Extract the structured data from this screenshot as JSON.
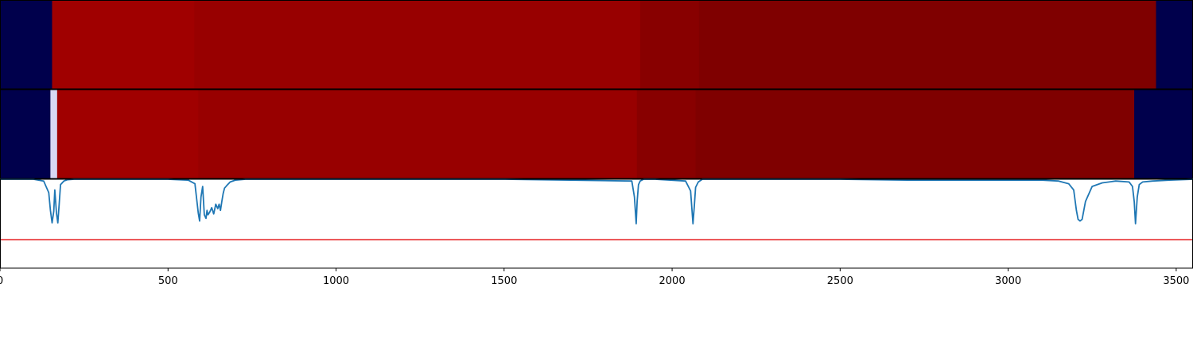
{
  "chart_data": [
    {
      "type": "heatmap",
      "colorscale": "seismic",
      "xlim": [
        0,
        3550
      ],
      "segments": [
        {
          "x0": 0,
          "x1": 155,
          "color": "#00004c"
        },
        {
          "x0": 155,
          "x1": 578,
          "color": "#a00000"
        },
        {
          "x0": 578,
          "x1": 1905,
          "color": "#980000"
        },
        {
          "x0": 1905,
          "x1": 2080,
          "color": "#880000"
        },
        {
          "x0": 2080,
          "x1": 3440,
          "color": "#7f0000"
        },
        {
          "x0": 3440,
          "x1": 3550,
          "color": "#00004c"
        }
      ]
    },
    {
      "type": "heatmap",
      "colorscale": "seismic",
      "xlim": [
        0,
        3550
      ],
      "segments": [
        {
          "x0": 0,
          "x1": 150,
          "color": "#00004c"
        },
        {
          "x0": 150,
          "x1": 170,
          "color": "#d8d8f4"
        },
        {
          "x0": 170,
          "x1": 590,
          "color": "#a00000"
        },
        {
          "x0": 590,
          "x1": 1895,
          "color": "#980000"
        },
        {
          "x0": 1895,
          "x1": 2070,
          "color": "#880000"
        },
        {
          "x0": 2070,
          "x1": 3375,
          "color": "#7f0000"
        },
        {
          "x0": 3375,
          "x1": 3550,
          "color": "#00004c"
        }
      ]
    },
    {
      "type": "line",
      "xlim": [
        0,
        3550
      ],
      "ylim": [
        -1.0,
        0.0
      ],
      "xticks": [
        0,
        500,
        1000,
        1500,
        2000,
        2500,
        3000,
        3500
      ],
      "tick_labels": [
        "0",
        "500",
        "1000",
        "1500",
        "2000",
        "2500",
        "3000",
        "3500"
      ],
      "threshold": {
        "y": -0.68,
        "color": "#e41a1c"
      },
      "series": [
        {
          "color": "#1f77b4",
          "x": [
            0,
            100,
            130,
            145,
            150,
            155,
            160,
            163,
            168,
            172,
            176,
            180,
            190,
            200,
            220,
            300,
            400,
            500,
            560,
            580,
            590,
            594,
            598,
            603,
            608,
            613,
            616,
            619,
            624,
            630,
            636,
            642,
            648,
            652,
            656,
            660,
            664,
            668,
            675,
            685,
            700,
            730,
            800,
            1000,
            1500,
            1880,
            1888,
            1893,
            1896,
            1900,
            1905,
            1915,
            1950,
            2040,
            2055,
            2062,
            2066,
            2070,
            2078,
            2090,
            2150,
            2300,
            2500,
            2700,
            2900,
            3000,
            3100,
            3150,
            3180,
            3195,
            3203,
            3208,
            3214,
            3220,
            3230,
            3250,
            3280,
            3320,
            3360,
            3370,
            3375,
            3379,
            3384,
            3390,
            3400,
            3430,
            3480,
            3550
          ],
          "y": [
            0.0,
            0.0,
            -0.02,
            -0.15,
            -0.35,
            -0.49,
            -0.36,
            -0.12,
            -0.38,
            -0.49,
            -0.28,
            -0.06,
            -0.02,
            -0.005,
            0.0,
            0.0,
            0.0,
            0.0,
            -0.01,
            -0.05,
            -0.38,
            -0.47,
            -0.2,
            -0.08,
            -0.4,
            -0.44,
            -0.35,
            -0.4,
            -0.37,
            -0.32,
            -0.39,
            -0.28,
            -0.33,
            -0.28,
            -0.35,
            -0.25,
            -0.16,
            -0.1,
            -0.07,
            -0.03,
            -0.01,
            0.0,
            0.0,
            0.0,
            0.0,
            -0.02,
            -0.2,
            -0.5,
            -0.25,
            -0.06,
            -0.02,
            0.0,
            0.0,
            -0.02,
            -0.13,
            -0.5,
            -0.3,
            -0.09,
            -0.03,
            0.0,
            0.0,
            0.0,
            0.0,
            -0.01,
            -0.01,
            -0.01,
            -0.01,
            -0.02,
            -0.05,
            -0.12,
            -0.35,
            -0.45,
            -0.47,
            -0.45,
            -0.25,
            -0.08,
            -0.04,
            -0.02,
            -0.03,
            -0.08,
            -0.25,
            -0.5,
            -0.2,
            -0.06,
            -0.03,
            -0.02,
            -0.01,
            0.0
          ]
        }
      ]
    }
  ]
}
